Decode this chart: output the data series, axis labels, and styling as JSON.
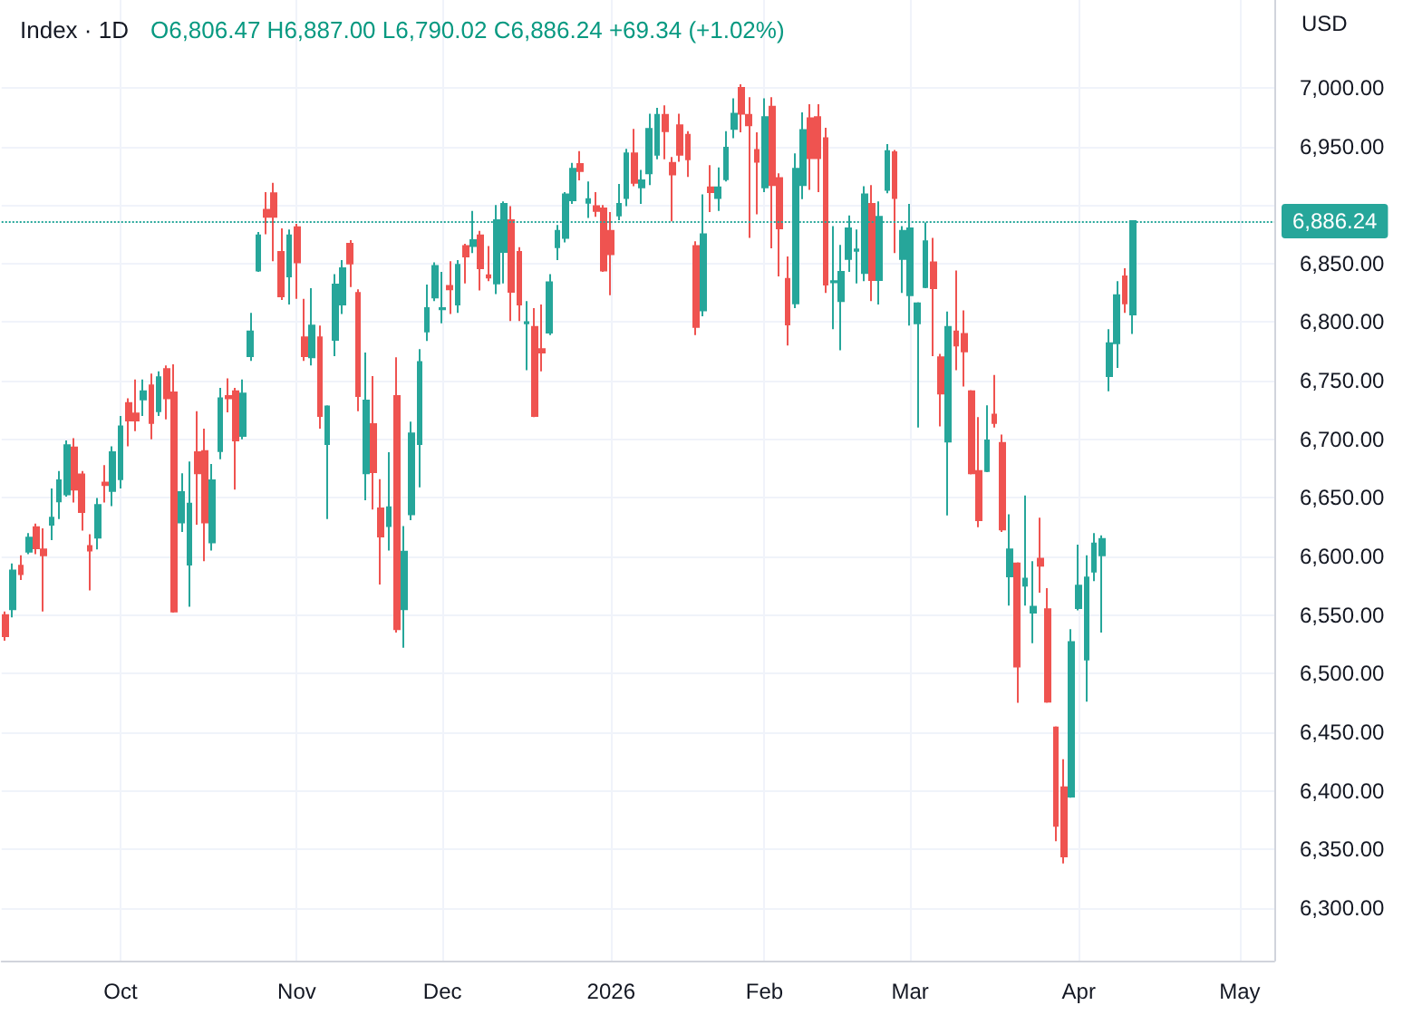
{
  "chart_data": {
    "type": "candlestick",
    "title": "Index · 1D",
    "subtitle": "O6,806.47 H6,887.00 L6,790.02 C6,886.24 +69.34 (+1.02%)",
    "ylabel": "USD",
    "categories": [
      null,
      null,
      null,
      null,
      null,
      null,
      null,
      null,
      null,
      null,
      null,
      null,
      null,
      null,
      null,
      "Oct",
      null,
      null,
      null,
      null,
      null,
      null,
      null,
      null,
      null,
      null,
      null,
      null,
      null,
      null,
      null,
      null,
      null,
      null,
      null,
      null,
      null,
      null,
      "Nov",
      null,
      null,
      null,
      null,
      null,
      null,
      null,
      null,
      null,
      null,
      null,
      null,
      null,
      null,
      null,
      null,
      null,
      null,
      "Dec",
      null,
      null,
      null,
      null,
      null,
      null,
      null,
      null,
      null,
      null,
      null,
      null,
      null,
      null,
      null,
      null,
      null,
      null,
      null,
      null,
      null,
      "2026",
      null,
      null,
      null,
      null,
      null,
      null,
      null,
      null,
      null,
      null,
      null,
      null,
      null,
      null,
      null,
      null,
      null,
      null,
      null,
      "Feb",
      null,
      null,
      null,
      null,
      null,
      null,
      null,
      null,
      null,
      null,
      null,
      null,
      null,
      null,
      null,
      null,
      null,
      null,
      "Mar",
      null,
      null,
      null,
      null,
      null,
      null,
      null,
      null,
      null,
      null,
      null,
      null,
      null,
      null,
      null,
      null,
      null,
      null,
      null,
      null,
      null,
      "Apr",
      null,
      null,
      null,
      null,
      null,
      null,
      null,
      null,
      null,
      null,
      null,
      null,
      null,
      null,
      null,
      null,
      null,
      null,
      null,
      null,
      "May",
      null,
      null,
      null,
      null
    ],
    "ohlc": [
      [
        6550,
        6553,
        6528,
        6532
      ],
      [
        6555,
        6594,
        6548,
        6588
      ],
      [
        6592,
        6601,
        6580,
        6585
      ],
      [
        6604,
        6620,
        6602,
        6616
      ],
      [
        6625,
        6628,
        6602,
        6607
      ],
      [
        6606,
        6624,
        6553,
        6601
      ],
      [
        6627,
        6658,
        6614,
        6633
      ],
      [
        6647,
        6673,
        6632,
        6665
      ],
      [
        6653,
        6699,
        6651,
        6695
      ],
      [
        6693,
        6701,
        6646,
        6657
      ],
      [
        6670,
        6673,
        6622,
        6638
      ],
      [
        6609,
        6619,
        6571,
        6605
      ],
      [
        6616,
        6650,
        6606,
        6644
      ],
      [
        6663,
        6678,
        6646,
        6661
      ],
      [
        6656,
        6694,
        6643,
        6689
      ],
      [
        6666,
        6720,
        6658,
        6711
      ],
      [
        6731,
        6735,
        6694,
        6716
      ],
      [
        6722,
        6751,
        6707,
        6716
      ],
      [
        6734,
        6751,
        6720,
        6741
      ],
      [
        6746,
        6756,
        6700,
        6714
      ],
      [
        6724,
        6758,
        6720,
        6753
      ],
      [
        6760,
        6763,
        6717,
        6735
      ],
      [
        6740,
        6764,
        6552,
        6553
      ],
      [
        6629,
        6671,
        6621,
        6655
      ],
      [
        6593,
        6681,
        6557,
        6645
      ],
      [
        6689,
        6724,
        6627,
        6671
      ],
      [
        6690,
        6709,
        6596,
        6629
      ],
      [
        6612,
        6679,
        6605,
        6665
      ],
      [
        6690,
        6744,
        6683,
        6735
      ],
      [
        6737,
        6752,
        6723,
        6735
      ],
      [
        6741,
        6744,
        6657,
        6699
      ],
      [
        6703,
        6751,
        6700,
        6739
      ],
      [
        6771,
        6808,
        6767,
        6792
      ],
      [
        6844,
        6877,
        6843,
        6874
      ],
      [
        6896,
        6911,
        6875,
        6890
      ],
      [
        6910,
        6919,
        6852,
        6890
      ],
      [
        6860,
        6880,
        6819,
        6822
      ],
      [
        6839,
        6879,
        6815,
        6874
      ],
      [
        6881,
        6884,
        6820,
        6851
      ],
      [
        6787,
        6820,
        6767,
        6771
      ],
      [
        6770,
        6829,
        6763,
        6797
      ],
      [
        6787,
        6797,
        6709,
        6720
      ],
      [
        6696,
        6729,
        6632,
        6728
      ],
      [
        6785,
        6841,
        6771,
        6832
      ],
      [
        6815,
        6853,
        6807,
        6846
      ],
      [
        6867,
        6870,
        6830,
        6850
      ],
      [
        6825,
        6828,
        6724,
        6737
      ],
      [
        6671,
        6774,
        6648,
        6733
      ],
      [
        6713,
        6754,
        6640,
        6672
      ],
      [
        6641,
        6666,
        6576,
        6617
      ],
      [
        6626,
        6689,
        6605,
        6642
      ],
      [
        6737,
        6770,
        6535,
        6538
      ],
      [
        6555,
        6626,
        6522,
        6604
      ],
      [
        6636,
        6715,
        6631,
        6705
      ],
      [
        6696,
        6777,
        6659,
        6766
      ],
      [
        6792,
        6832,
        6784,
        6812
      ],
      [
        6821,
        6851,
        6818,
        6848
      ],
      [
        6811,
        6843,
        6799,
        6812
      ],
      [
        6831,
        6852,
        6807,
        6828
      ],
      [
        6815,
        6853,
        6808,
        6849
      ],
      [
        6865,
        6867,
        6833,
        6856
      ],
      [
        6865,
        6895,
        6859,
        6870
      ],
      [
        6874,
        6878,
        6827,
        6846
      ],
      [
        6840,
        6865,
        6835,
        6838
      ],
      [
        6833,
        6900,
        6824,
        6887
      ],
      [
        6860,
        6903,
        6833,
        6901
      ],
      [
        6887,
        6899,
        6801,
        6826
      ],
      [
        6860,
        6864,
        6801,
        6815
      ],
      [
        6799,
        6818,
        6759,
        6800
      ],
      [
        6796,
        6812,
        6719,
        6720
      ],
      [
        6777,
        6815,
        6758,
        6774
      ],
      [
        6791,
        6841,
        6789,
        6834
      ],
      [
        6864,
        6883,
        6853,
        6878
      ],
      [
        6872,
        6911,
        6868,
        6909
      ],
      [
        6904,
        6936,
        6901,
        6931
      ],
      [
        6935,
        6946,
        6921,
        6929
      ],
      [
        6902,
        6920,
        6889,
        6905
      ],
      [
        6899,
        6911,
        6890,
        6895
      ],
      [
        6897,
        6900,
        6843,
        6844
      ],
      [
        6878,
        6894,
        6823,
        6858
      ],
      [
        6891,
        6918,
        6887,
        6901
      ],
      [
        6906,
        6948,
        6899,
        6944
      ],
      [
        6944,
        6965,
        6916,
        6919
      ],
      [
        6915,
        6930,
        6901,
        6921
      ],
      [
        6927,
        6978,
        6917,
        6965
      ],
      [
        6943,
        6983,
        6939,
        6977
      ],
      [
        6977,
        6985,
        6939,
        6963
      ],
      [
        6936,
        6941,
        6886,
        6926
      ],
      [
        6968,
        6978,
        6937,
        6943
      ],
      [
        6960,
        6963,
        6924,
        6939
      ],
      [
        6865,
        6869,
        6789,
        6796
      ],
      [
        6810,
        6909,
        6805,
        6875
      ],
      [
        6915,
        6934,
        6894,
        6911
      ],
      [
        6906,
        6932,
        6895,
        6915
      ],
      [
        6922,
        6963,
        6920,
        6949
      ],
      [
        6965,
        6991,
        6957,
        6978
      ],
      [
        7000,
        7003,
        6962,
        6978
      ],
      [
        6977,
        6992,
        6872,
        6968
      ],
      [
        6947,
        6962,
        6892,
        6937
      ],
      [
        6915,
        6991,
        6911,
        6975
      ],
      [
        6984,
        6992,
        6863,
        6917
      ],
      [
        6923,
        6927,
        6839,
        6880
      ],
      [
        6837,
        6856,
        6780,
        6798
      ],
      [
        6816,
        6944,
        6812,
        6931
      ],
      [
        6917,
        6979,
        6905,
        6964
      ],
      [
        6974,
        6986,
        6913,
        6940
      ],
      [
        6975,
        6986,
        6911,
        6940
      ],
      [
        6957,
        6966,
        6825,
        6832
      ],
      [
        6834,
        6882,
        6794,
        6835
      ],
      [
        6818,
        6866,
        6776,
        6843
      ],
      [
        6854,
        6891,
        6843,
        6880
      ],
      [
        6861,
        6879,
        6833,
        6862
      ],
      [
        6842,
        6916,
        6835,
        6909
      ],
      [
        6901,
        6917,
        6818,
        6836
      ],
      [
        6836,
        6903,
        6815,
        6890
      ],
      [
        6913,
        6952,
        6910,
        6946
      ],
      [
        6945,
        6947,
        6859,
        6906
      ],
      [
        6854,
        6882,
        6825,
        6878
      ],
      [
        6823,
        6901,
        6797,
        6880
      ],
      [
        6799,
        6817,
        6710,
        6816
      ],
      [
        6830,
        6885,
        6829,
        6869
      ],
      [
        6851,
        6872,
        6771,
        6829
      ],
      [
        6770,
        6773,
        6711,
        6739
      ],
      [
        6698,
        6809,
        6635,
        6796
      ],
      [
        6792,
        6844,
        6759,
        6780
      ],
      [
        6790,
        6810,
        6745,
        6775
      ],
      [
        6741,
        6742,
        6670,
        6671
      ],
      [
        6673,
        6719,
        6625,
        6631
      ],
      [
        6673,
        6729,
        6672,
        6699
      ],
      [
        6721,
        6755,
        6710,
        6714
      ],
      [
        6697,
        6704,
        6621,
        6623
      ],
      [
        6583,
        6636,
        6558,
        6606
      ],
      [
        6594,
        6595,
        6475,
        6506
      ],
      [
        6575,
        6652,
        6558,
        6581
      ],
      [
        6552,
        6596,
        6526,
        6557
      ],
      [
        6598,
        6633,
        6569,
        6592
      ],
      [
        6555,
        6573,
        6475,
        6476
      ],
      [
        6454,
        6455,
        6357,
        6370
      ],
      [
        6403,
        6427,
        6338,
        6344
      ],
      [
        6395,
        6538,
        6394,
        6527
      ],
      [
        6556,
        6610,
        6554,
        6575
      ],
      [
        6512,
        6601,
        6476,
        6582
      ],
      [
        6587,
        6620,
        6579,
        6611
      ],
      [
        6601,
        6618,
        6535,
        6615
      ],
      [
        6754,
        6794,
        6741,
        6782
      ],
      [
        6782,
        6835,
        6761,
        6823
      ],
      [
        6839,
        6846,
        6808,
        6816
      ],
      [
        6806.47,
        6887,
        6790.02,
        6886.24
      ],
      null,
      null,
      null,
      null,
      null,
      null,
      null,
      null,
      null,
      null,
      null,
      null,
      null,
      null,
      null,
      null,
      null,
      null
    ],
    "colors": [
      "#ef5350",
      "#26a69a",
      "#ef5350",
      "#26a69a",
      "#ef5350",
      "#ef5350",
      "#26a69a",
      "#26a69a",
      "#26a69a",
      "#ef5350",
      "#ef5350",
      "#ef5350",
      "#26a69a",
      "#ef5350",
      "#26a69a",
      "#26a69a",
      "#ef5350",
      "#ef5350",
      "#26a69a",
      "#ef5350",
      "#26a69a",
      "#ef5350",
      "#ef5350",
      "#26a69a",
      "#26a69a",
      "#ef5350",
      "#ef5350",
      "#26a69a",
      "#26a69a",
      "#ef5350",
      "#ef5350",
      "#26a69a",
      "#26a69a",
      "#26a69a",
      "#ef5350",
      "#ef5350",
      "#ef5350",
      "#26a69a",
      "#ef5350",
      "#ef5350",
      "#26a69a",
      "#ef5350",
      "#26a69a",
      "#26a69a",
      "#26a69a",
      "#ef5350",
      "#ef5350",
      "#26a69a",
      "#ef5350",
      "#ef5350",
      "#26a69a",
      "#ef5350",
      "#26a69a",
      "#26a69a",
      "#26a69a",
      "#26a69a",
      "#26a69a",
      "#26a69a",
      "#ef5350",
      "#26a69a",
      "#ef5350",
      "#26a69a",
      "#ef5350",
      "#ef5350",
      "#26a69a",
      "#26a69a",
      "#ef5350",
      "#ef5350",
      "#26a69a",
      "#ef5350",
      "#ef5350",
      "#26a69a",
      "#26a69a",
      "#26a69a",
      "#26a69a",
      "#ef5350",
      "#26a69a",
      "#ef5350",
      "#ef5350",
      "#ef5350",
      "#26a69a",
      "#26a69a",
      "#ef5350",
      "#26a69a",
      "#26a69a",
      "#26a69a",
      "#ef5350",
      "#ef5350",
      "#ef5350",
      "#ef5350",
      "#ef5350",
      "#26a69a",
      "#ef5350",
      "#26a69a",
      "#26a69a",
      "#26a69a",
      "#ef5350",
      "#ef5350",
      "#ef5350",
      "#26a69a",
      "#ef5350",
      "#ef5350",
      "#ef5350",
      "#26a69a",
      "#26a69a",
      "#ef5350",
      "#ef5350",
      "#ef5350",
      "#26a69a",
      "#26a69a",
      "#26a69a",
      "#26a69a",
      "#26a69a",
      "#ef5350",
      "#26a69a",
      "#26a69a",
      "#ef5350",
      "#26a69a",
      "#26a69a",
      "#26a69a",
      "#26a69a",
      "#ef5350",
      "#ef5350",
      "#26a69a",
      "#ef5350",
      "#ef5350",
      "#ef5350",
      "#ef5350",
      "#26a69a",
      "#ef5350",
      "#ef5350",
      "#26a69a",
      "#ef5350",
      "#26a69a",
      "#26a69a",
      "#ef5350",
      "#ef5350",
      "#ef5350",
      "#ef5350",
      "#26a69a",
      "#26a69a",
      "#26a69a",
      "#26a69a",
      "#26a69a",
      "#26a69a",
      "#26a69a",
      "#ef5350",
      "#26a69a",
      null,
      null,
      null,
      null,
      null,
      null,
      null,
      null,
      null,
      null,
      null,
      null,
      null,
      null,
      null,
      null,
      null,
      null
    ],
    "ylim": [
      6255,
      7075
    ],
    "yticks": [
      {
        "value": 6300,
        "label": "6,300.00"
      },
      {
        "value": 6350,
        "label": "6,350.00"
      },
      {
        "value": 6400,
        "label": "6,400.00"
      },
      {
        "value": 6450,
        "label": "6,450.00"
      },
      {
        "value": 6500,
        "label": "6,500.00"
      },
      {
        "value": 6550,
        "label": "6,550.00"
      },
      {
        "value": 6600,
        "label": "6,600.00"
      },
      {
        "value": 6650,
        "label": "6,650.00"
      },
      {
        "value": 6700,
        "label": "6,700.00"
      },
      {
        "value": 6750,
        "label": "6,750.00"
      },
      {
        "value": 6800,
        "label": "6,800.00"
      },
      {
        "value": 6850,
        "label": "6,850.00"
      },
      {
        "value": 6900,
        "label": null
      },
      {
        "value": 6950,
        "label": "6,950.00"
      },
      {
        "value": 7000,
        "label": "7,000.00"
      }
    ],
    "grid": true,
    "ref_lines": [
      {
        "axis": "y",
        "value": 6886.24,
        "label": "6,886.24",
        "color": "#26a69a",
        "line_style": "dotted"
      }
    ]
  }
}
